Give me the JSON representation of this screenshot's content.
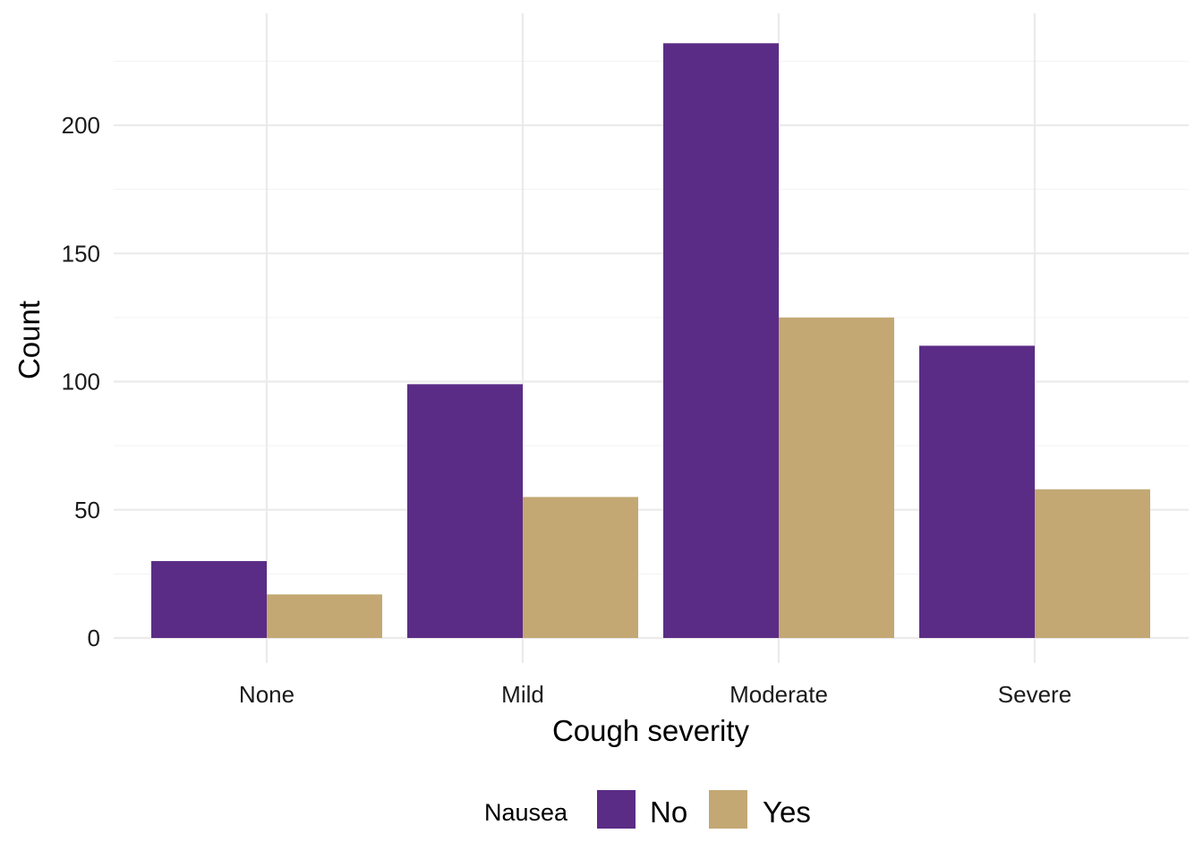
{
  "chart_data": {
    "type": "bar",
    "xlabel": "Cough severity",
    "ylabel": "Count",
    "categories": [
      "None",
      "Mild",
      "Moderate",
      "Severe"
    ],
    "series": [
      {
        "name": "No",
        "color": "#5b2c86",
        "values": [
          30,
          99,
          232,
          114
        ]
      },
      {
        "name": "Yes",
        "color": "#c3a873",
        "values": [
          17,
          55,
          125,
          58
        ]
      }
    ],
    "ylim": [
      0,
      250
    ],
    "yticks": [
      0,
      50,
      100,
      150,
      200
    ],
    "grid": true,
    "legend": {
      "title": "Nausea",
      "position": "bottom"
    }
  }
}
